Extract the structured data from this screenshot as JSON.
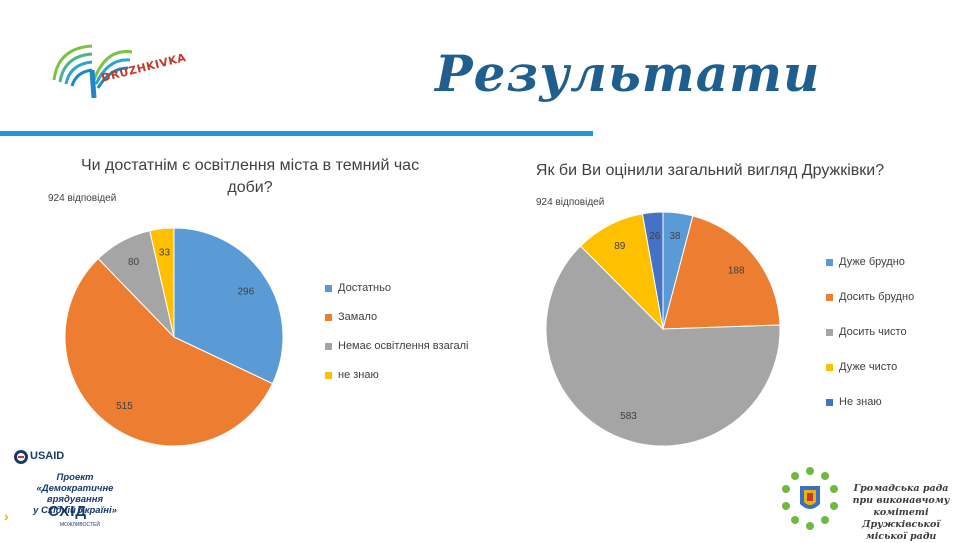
{
  "header": {
    "title": "Результати",
    "logo_text": "DRUZHKIVKA"
  },
  "colors": {
    "blue": "#5b9bd5",
    "orange": "#ed7d31",
    "gray": "#a5a5a5",
    "yellow": "#ffc000",
    "dark_blue": "#4472c4",
    "accent_rule": "#1e9bd7",
    "title_blue": "#1f5f8f"
  },
  "chart_data": [
    {
      "type": "pie",
      "title": "Чи достатнім є освітлення міста в темний час доби?",
      "subtitle": "924 відповідей",
      "categories": [
        "Достатньо",
        "Замало",
        "Немає освітлення взагалі",
        "не знаю"
      ],
      "values": [
        296,
        515,
        80,
        33
      ],
      "colors": [
        "#5b9bd5",
        "#ed7d31",
        "#a5a5a5",
        "#ffc000"
      ],
      "legend": "right"
    },
    {
      "type": "pie",
      "title": "Як би Ви оцінили загальний вигляд Дружківки?",
      "subtitle": "924 відповідей",
      "categories": [
        "Дуже брудно",
        "Досить брудно",
        "Досить чисто",
        "Дуже чисто",
        "Не знаю"
      ],
      "values": [
        38,
        188,
        583,
        89,
        26
      ],
      "colors": [
        "#5b9bd5",
        "#ed7d31",
        "#a5a5a5",
        "#ffc000",
        "#4472c4"
      ],
      "legend": "right"
    }
  ],
  "footer": {
    "usaid": "USAID",
    "project_line1": "Проект",
    "project_line2": "«Демократичне врядування",
    "project_line3": "у Східній Україні»",
    "skhid": "СХІД",
    "skhid_sub": "МОЖЛИВОСТЕЙ",
    "council_line1": "Громадська рада",
    "council_line2": "при виконавчому комітеті",
    "council_line3": "Дружківської міської ради"
  }
}
